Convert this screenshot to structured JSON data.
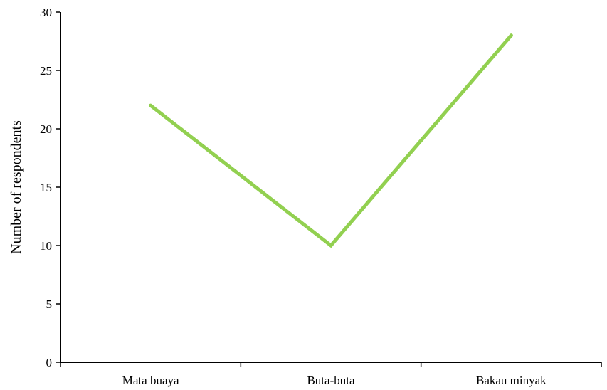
{
  "chart_data": {
    "type": "line",
    "title": "",
    "xlabel": "",
    "ylabel": "Number of respondents",
    "categories": [
      "Mata buaya",
      "Buta-buta",
      "Bakau minyak"
    ],
    "series": [
      {
        "values": [
          22,
          10,
          28
        ],
        "color": "#92d050"
      }
    ],
    "ylim": [
      0,
      30
    ],
    "yticks": [
      "0",
      "5",
      "10",
      "15",
      "20",
      "25",
      "30"
    ],
    "grid": false,
    "legend": "none",
    "axis_color": "#000000"
  }
}
